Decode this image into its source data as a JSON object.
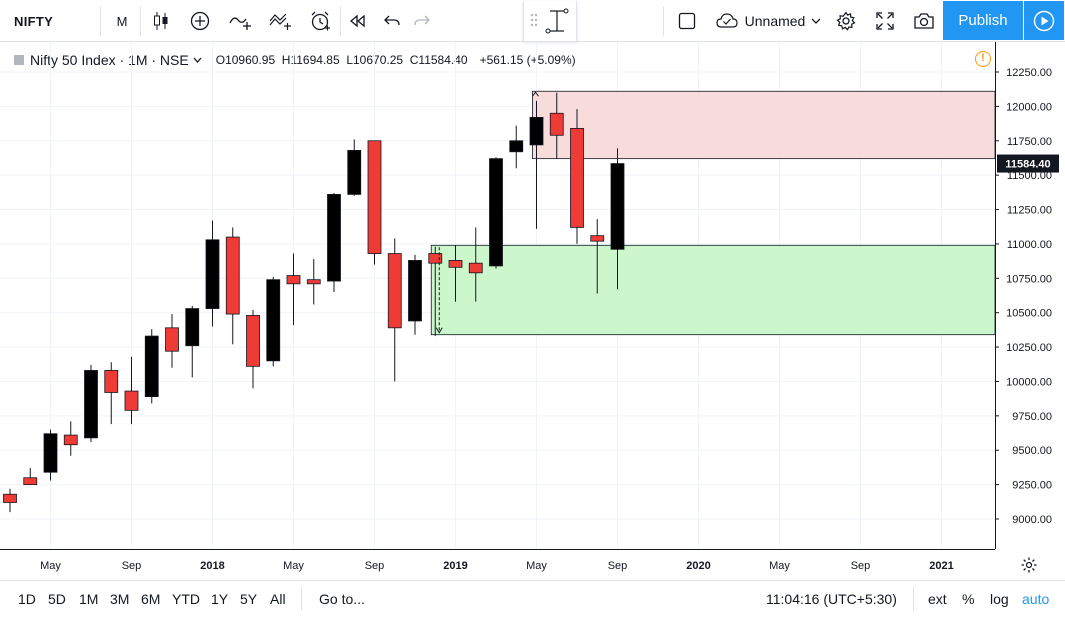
{
  "toolbar": {
    "symbol": "NIFTY",
    "interval": "M",
    "chart_title_default": "Unnamed",
    "publish_label": "Publish",
    "icons": [
      "candles-icon",
      "indicators-icon",
      "compare-icon",
      "drawing-icon",
      "alert-icon",
      "replay-icon",
      "undo-icon",
      "redo-icon",
      "layout-icon",
      "cloud-icon",
      "settings-icon",
      "fullscreen-icon",
      "snapshot-icon",
      "play-icon"
    ]
  },
  "legend": {
    "title": "Nifty 50 Index · 1M · NSE",
    "open_label": "O",
    "open": "10960.95",
    "high_label": "H",
    "high": "11694.85",
    "low_label": "L",
    "low": "10670.25",
    "close_label": "C",
    "close": "11584.40",
    "change": "+561.15 (+5.09%)",
    "alert_glyph": "!"
  },
  "price_axis": {
    "ticks": [
      "12250.00",
      "12000.00",
      "11750.00",
      "11500.00",
      "11250.00",
      "11000.00",
      "10750.00",
      "10500.00",
      "10250.00",
      "10000.00",
      "9750.00",
      "9500.00",
      "9250.00",
      "9000.00"
    ],
    "last_price_label": "11584.40"
  },
  "time_axis": {
    "ticks": [
      "May",
      "Sep",
      "2018",
      "May",
      "Sep",
      "2019",
      "May",
      "Sep",
      "2020",
      "May",
      "Sep",
      "2021"
    ]
  },
  "bottom_bar": {
    "ranges": [
      "1D",
      "5D",
      "1M",
      "3M",
      "6M",
      "YTD",
      "1Y",
      "5Y",
      "All"
    ],
    "goto_label": "Go to...",
    "clock": "11:04:16 (UTC+5:30)",
    "ext_label": "ext",
    "percent_label": "%",
    "log_label": "log",
    "auto_label": "auto"
  },
  "colors": {
    "up": "#000000",
    "down": "#ef3b36",
    "accent": "#2196f3",
    "demand_zone": "#ccf7cc",
    "supply_zone": "#f8dcdc"
  },
  "chart_data": {
    "type": "candlestick",
    "timeframe": "1M",
    "ylim": [
      8800,
      12400
    ],
    "candles": [
      {
        "month": "2017-03",
        "o": 9180,
        "h": 9220,
        "l": 9050,
        "c": 9120
      },
      {
        "month": "2017-04",
        "o": 9300,
        "h": 9370,
        "l": 9270,
        "c": 9250
      },
      {
        "month": "2017-05",
        "o": 9340,
        "h": 9650,
        "l": 9280,
        "c": 9620
      },
      {
        "month": "2017-06",
        "o": 9610,
        "h": 9710,
        "l": 9460,
        "c": 9540
      },
      {
        "month": "2017-07",
        "o": 9590,
        "h": 10120,
        "l": 9560,
        "c": 10080
      },
      {
        "month": "2017-08",
        "o": 10080,
        "h": 10140,
        "l": 9690,
        "c": 9920
      },
      {
        "month": "2017-09",
        "o": 9930,
        "h": 10180,
        "l": 9690,
        "c": 9790
      },
      {
        "month": "2017-10",
        "o": 9890,
        "h": 10380,
        "l": 9840,
        "c": 10330
      },
      {
        "month": "2017-11",
        "o": 10390,
        "h": 10490,
        "l": 10100,
        "c": 10220
      },
      {
        "month": "2017-12",
        "o": 10260,
        "h": 10550,
        "l": 10030,
        "c": 10530
      },
      {
        "month": "2018-01",
        "o": 10530,
        "h": 11170,
        "l": 10400,
        "c": 11030
      },
      {
        "month": "2018-02",
        "o": 11050,
        "h": 11120,
        "l": 10270,
        "c": 10490
      },
      {
        "month": "2018-03",
        "o": 10480,
        "h": 10520,
        "l": 9950,
        "c": 10110
      },
      {
        "month": "2018-04",
        "o": 10150,
        "h": 10760,
        "l": 10110,
        "c": 10740
      },
      {
        "month": "2018-05",
        "o": 10770,
        "h": 10930,
        "l": 10410,
        "c": 10710
      },
      {
        "month": "2018-06",
        "o": 10740,
        "h": 10890,
        "l": 10560,
        "c": 10710
      },
      {
        "month": "2018-07",
        "o": 10730,
        "h": 11370,
        "l": 10650,
        "c": 11360
      },
      {
        "month": "2018-08",
        "o": 11360,
        "h": 11760,
        "l": 11350,
        "c": 11680
      },
      {
        "month": "2018-09",
        "o": 11750,
        "h": 11750,
        "l": 10850,
        "c": 10930
      },
      {
        "month": "2018-10",
        "o": 10930,
        "h": 11040,
        "l": 10000,
        "c": 10390
      },
      {
        "month": "2018-11",
        "o": 10440,
        "h": 10920,
        "l": 10340,
        "c": 10880
      },
      {
        "month": "2018-12",
        "o": 10930,
        "h": 10980,
        "l": 10330,
        "c": 10860
      },
      {
        "month": "2019-01",
        "o": 10880,
        "h": 10990,
        "l": 10580,
        "c": 10830
      },
      {
        "month": "2019-02",
        "o": 10860,
        "h": 11120,
        "l": 10580,
        "c": 10790
      },
      {
        "month": "2019-03",
        "o": 10840,
        "h": 11630,
        "l": 10820,
        "c": 11620
      },
      {
        "month": "2019-04",
        "o": 11670,
        "h": 11860,
        "l": 11550,
        "c": 11750
      },
      {
        "month": "2019-05",
        "o": 11720,
        "h": 12040,
        "l": 11110,
        "c": 11920
      },
      {
        "month": "2019-06",
        "o": 11950,
        "h": 12100,
        "l": 11620,
        "c": 11790
      },
      {
        "month": "2019-07",
        "o": 11840,
        "h": 11980,
        "l": 11000,
        "c": 11120
      },
      {
        "month": "2019-08",
        "o": 11060,
        "h": 11180,
        "l": 10640,
        "c": 11020
      },
      {
        "month": "2019-09",
        "o": 10960.95,
        "h": 11694.85,
        "l": 10670.25,
        "c": 11584.4
      }
    ],
    "zones": [
      {
        "kind": "supply",
        "from": "2019-05",
        "low": 11620,
        "high": 12110
      },
      {
        "kind": "demand",
        "from": "2018-12",
        "low": 10340,
        "high": 10990
      }
    ]
  }
}
